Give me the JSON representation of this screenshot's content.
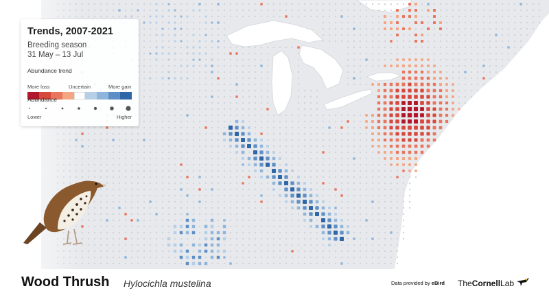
{
  "legend": {
    "title": "Trends, 2007-2021",
    "season": "Breeding season",
    "dates": "31 May – 13 Jul",
    "trend_heading": "Abundance trend",
    "trend_left": "More loss",
    "trend_mid": "Uncertain",
    "trend_right": "More gain",
    "trend_colors": [
      "#b2182b",
      "#d6473c",
      "#e8755e",
      "#f4a582",
      "#ffffff",
      "#b7cfe6",
      "#8fb5db",
      "#5d8fc6",
      "#2f66a8"
    ],
    "abundance_heading": "Abundance",
    "abundance_low": "Lower",
    "abundance_high": "Higher"
  },
  "species": {
    "common_name": "Wood Thrush",
    "scientific_name": "Hylocichla mustelina"
  },
  "credits": {
    "data_prefix": "Data provided by",
    "data_source": "eBird",
    "lab_prefix": "The",
    "lab_name": "Cornell",
    "lab_suffix": "Lab"
  },
  "colors": {
    "land": "#e7e9ec",
    "water": "#ffffff",
    "loss": "#d6473c",
    "gain": "#2f66a8",
    "neutral_cell": "#cfd3d8"
  },
  "icons": [
    "wood-thrush-illustration",
    "cornell-lab-bird-logo"
  ]
}
